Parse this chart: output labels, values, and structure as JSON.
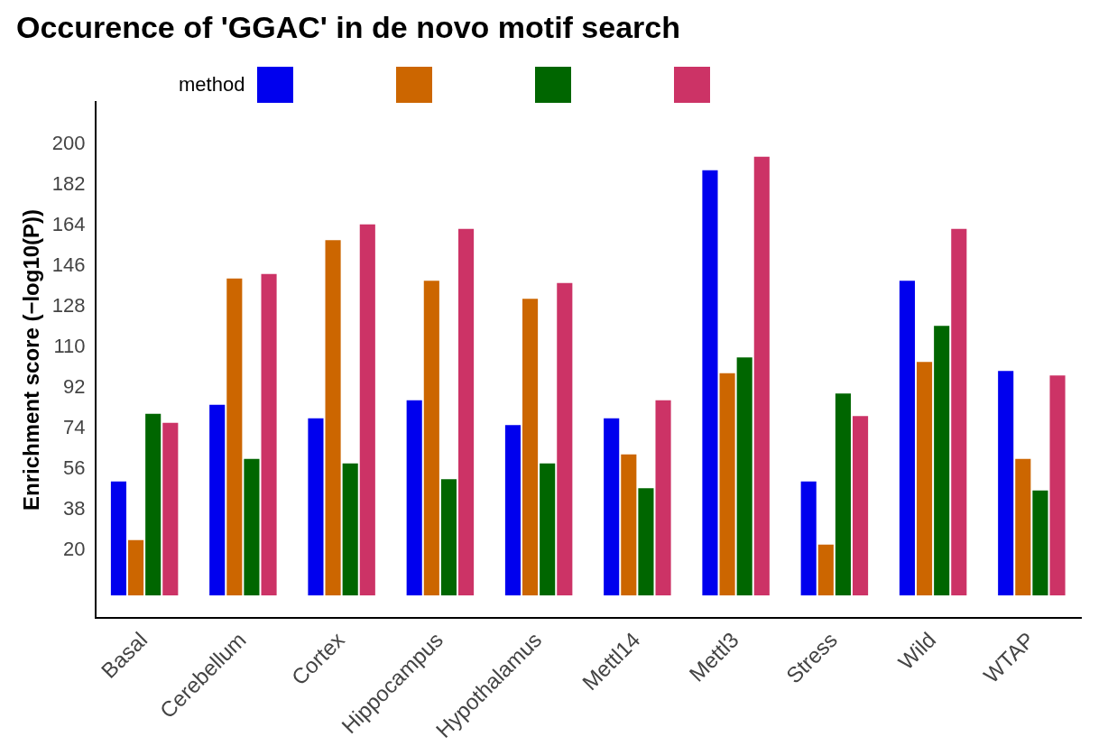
{
  "chart_data": {
    "type": "bar",
    "title": "Occurence of 'GGAC' in de novo motif search",
    "ylabel": "Enrichment score (−log10(P))",
    "legend_title": "method",
    "categories": [
      "Basal",
      "Cerebellum",
      "Cortex",
      "Hippocampus",
      "Hypothalamus",
      "Mettl14",
      "Mettl3",
      "Stress",
      "Wild",
      "WTAP"
    ],
    "series": [
      {
        "color": "#0000ee",
        "values": [
          51,
          85,
          79,
          87,
          76,
          79,
          189,
          51,
          140,
          100
        ]
      },
      {
        "color": "#cc6600",
        "values": [
          25,
          141,
          158,
          140,
          132,
          63,
          99,
          23,
          104,
          61
        ]
      },
      {
        "color": "#006600",
        "values": [
          81,
          61,
          59,
          52,
          59,
          48,
          106,
          90,
          120,
          47
        ]
      },
      {
        "color": "#cc3366",
        "values": [
          77,
          143,
          165,
          163,
          139,
          87,
          195,
          80,
          163,
          98
        ]
      }
    ],
    "ylim": [
      -10,
      219
    ],
    "yticks": [
      20,
      38,
      56,
      74,
      92,
      110,
      128,
      146,
      164,
      182,
      200
    ],
    "grid": false
  }
}
